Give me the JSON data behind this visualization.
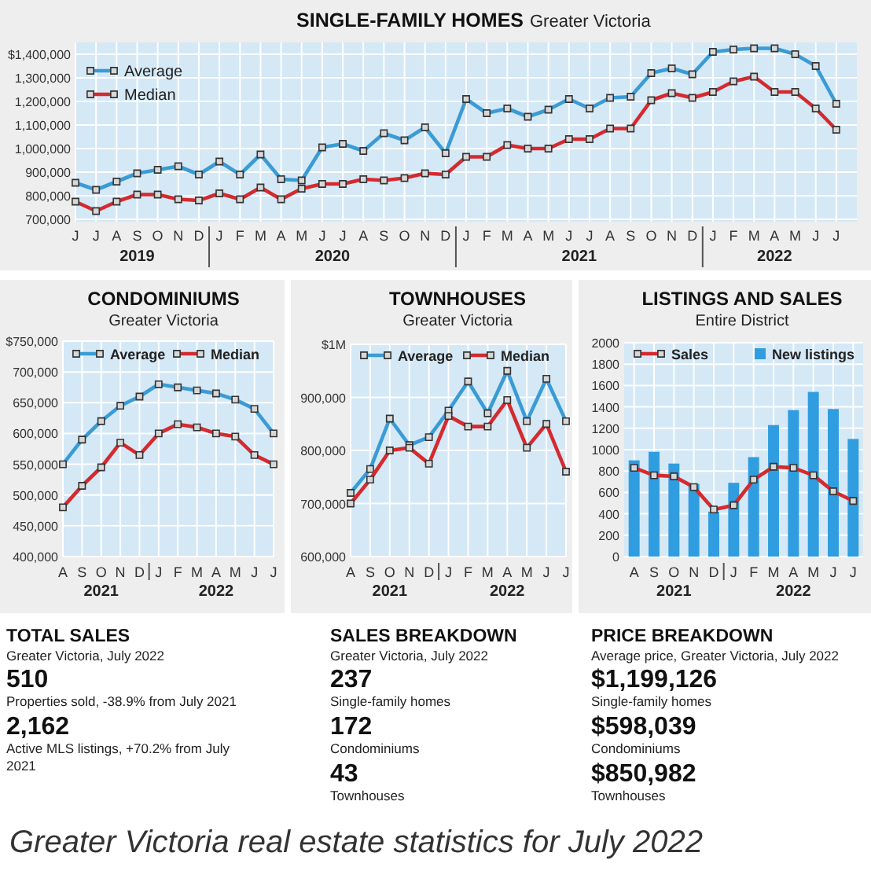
{
  "chart_data": [
    {
      "type": "line",
      "title": "SINGLE-FAMILY HOMES",
      "subtitle": "Greater Victoria",
      "categories": [
        "J",
        "J",
        "A",
        "S",
        "O",
        "N",
        "D",
        "J",
        "F",
        "M",
        "A",
        "M",
        "J",
        "J",
        "A",
        "S",
        "O",
        "N",
        "D",
        "J",
        "F",
        "M",
        "A",
        "M",
        "J",
        "J",
        "A",
        "S",
        "O",
        "N",
        "D",
        "J",
        "F",
        "M",
        "A",
        "M",
        "J",
        "J"
      ],
      "annotations": [
        "2019",
        "2020",
        "2021",
        "2022"
      ],
      "ylim": [
        690000,
        1450000
      ],
      "yticks": [
        {
          "value": 700000,
          "label": "700,000"
        },
        {
          "value": 800000,
          "label": "800,000"
        },
        {
          "value": 900000,
          "label": "900,000"
        },
        {
          "value": 1000000,
          "label": "1,000,000"
        },
        {
          "value": 1100000,
          "label": "1,100,000"
        },
        {
          "value": 1200000,
          "label": "1,200,000"
        },
        {
          "value": 1300000,
          "label": "1,300,000"
        },
        {
          "value": 1400000,
          "label": "$1,400,000"
        }
      ],
      "series": [
        {
          "name": "Average",
          "color": "#3a9bd5",
          "values": [
            855000,
            825000,
            860000,
            895000,
            910000,
            925000,
            890000,
            945000,
            890000,
            975000,
            870000,
            865000,
            1005000,
            1020000,
            990000,
            1065000,
            1035000,
            1090000,
            980000,
            1210000,
            1150000,
            1170000,
            1135000,
            1165000,
            1210000,
            1170000,
            1215000,
            1220000,
            1320000,
            1340000,
            1315000,
            1410000,
            1420000,
            1425000,
            1425000,
            1400000,
            1350000,
            1190000
          ]
        },
        {
          "name": "Median",
          "color": "#d42a2e",
          "values": [
            775000,
            735000,
            775000,
            805000,
            805000,
            785000,
            780000,
            810000,
            785000,
            835000,
            785000,
            830000,
            850000,
            850000,
            870000,
            865000,
            875000,
            895000,
            890000,
            965000,
            965000,
            1015000,
            1000000,
            1000000,
            1040000,
            1040000,
            1085000,
            1085000,
            1205000,
            1235000,
            1215000,
            1240000,
            1285000,
            1305000,
            1240000,
            1240000,
            1170000,
            1080000
          ]
        }
      ],
      "grid": true,
      "legend": "top left",
      "marker": "square"
    },
    {
      "type": "line",
      "title": "CONDOMINIUMS",
      "subtitle": "Greater Victoria",
      "categories": [
        "A",
        "S",
        "O",
        "N",
        "D",
        "J",
        "F",
        "M",
        "A",
        "M",
        "J",
        "J"
      ],
      "annotations": [
        "2021",
        "2022"
      ],
      "ylim": [
        400000,
        750000
      ],
      "yticks": [
        {
          "value": 400000,
          "label": "400,000"
        },
        {
          "value": 450000,
          "label": "450,000"
        },
        {
          "value": 500000,
          "label": "500,000"
        },
        {
          "value": 550000,
          "label": "550,000"
        },
        {
          "value": 600000,
          "label": "600,000"
        },
        {
          "value": 650000,
          "label": "650,000"
        },
        {
          "value": 700000,
          "label": "700,000"
        },
        {
          "value": 750000,
          "label": "$750,000"
        }
      ],
      "series": [
        {
          "name": "Average",
          "color": "#3a9bd5",
          "values": [
            550000,
            590000,
            620000,
            645000,
            660000,
            680000,
            675000,
            670000,
            665000,
            655000,
            640000,
            600000
          ]
        },
        {
          "name": "Median",
          "color": "#d42a2e",
          "values": [
            480000,
            515000,
            545000,
            585000,
            565000,
            600000,
            615000,
            610000,
            600000,
            595000,
            565000,
            550000
          ]
        }
      ],
      "grid": true,
      "legend": "top",
      "marker": "square"
    },
    {
      "type": "line",
      "title": "TOWNHOUSES",
      "subtitle": "Greater Victoria",
      "categories": [
        "A",
        "S",
        "O",
        "N",
        "D",
        "J",
        "F",
        "M",
        "A",
        "M",
        "J",
        "J"
      ],
      "annotations": [
        "2021",
        "2022"
      ],
      "ylim": [
        600000,
        1000000
      ],
      "yticks": [
        {
          "value": 600000,
          "label": "600,000"
        },
        {
          "value": 700000,
          "label": "700,000"
        },
        {
          "value": 800000,
          "label": "800,000"
        },
        {
          "value": 900000,
          "label": "900,000"
        },
        {
          "value": 1000000,
          "label": "$1M"
        }
      ],
      "series": [
        {
          "name": "Average",
          "color": "#3a9bd5",
          "values": [
            720000,
            765000,
            860000,
            810000,
            825000,
            875000,
            930000,
            870000,
            950000,
            855000,
            935000,
            855000
          ]
        },
        {
          "name": "Median",
          "color": "#d42a2e",
          "values": [
            700000,
            745000,
            800000,
            805000,
            775000,
            865000,
            845000,
            845000,
            895000,
            805000,
            850000,
            760000
          ]
        }
      ],
      "grid": true,
      "legend": "top",
      "marker": "square"
    },
    {
      "type": "bar",
      "title": "LISTINGS AND SALES",
      "subtitle": "Entire District",
      "categories": [
        "A",
        "S",
        "O",
        "N",
        "D",
        "J",
        "F",
        "M",
        "A",
        "M",
        "J",
        "J"
      ],
      "annotations": [
        "2021",
        "2022"
      ],
      "ylim": [
        0,
        2000
      ],
      "yticks": [
        0,
        200,
        400,
        600,
        800,
        1000,
        1200,
        1400,
        1600,
        1800,
        2000
      ],
      "series": [
        {
          "name": "Sales",
          "type": "line",
          "color": "#d42a2e",
          "values": [
            830,
            760,
            750,
            650,
            440,
            480,
            720,
            840,
            830,
            760,
            610,
            520
          ]
        },
        {
          "name": "New listings",
          "color": "#2f9de0",
          "values": [
            900,
            980,
            870,
            680,
            420,
            690,
            930,
            1230,
            1370,
            1540,
            1380,
            1100
          ]
        }
      ],
      "grid": true,
      "legend": "top",
      "marker": "square"
    },
    {
      "type": "other",
      "title": "TOTAL SALES",
      "subtitle": "Greater Victoria, July 2022",
      "categories": [
        "Properties sold, -38.9% from July 2021",
        "Active MLS listings, +70.2% from July 2021"
      ],
      "value_labels": [
        "510",
        "2,162"
      ]
    },
    {
      "type": "other",
      "title": "SALES BREAKDOWN",
      "subtitle": "Greater Victoria, July 2022",
      "categories": [
        "Single-family homes",
        "Condominiums",
        "Townhouses"
      ],
      "value_labels": [
        "237",
        "172",
        "43"
      ]
    },
    {
      "type": "other",
      "title": "PRICE BREAKDOWN",
      "subtitle": "Average price, Greater Victoria, July 2022",
      "categories": [
        "Single-family homes",
        "Condominiums",
        "Townhouses"
      ],
      "value_labels": [
        "$1,199,126",
        "$598,039",
        "$850,982"
      ]
    },
    {
      "type": "other",
      "annotations": [
        "Greater Victoria real estate statistics for July 2022"
      ]
    }
  ]
}
